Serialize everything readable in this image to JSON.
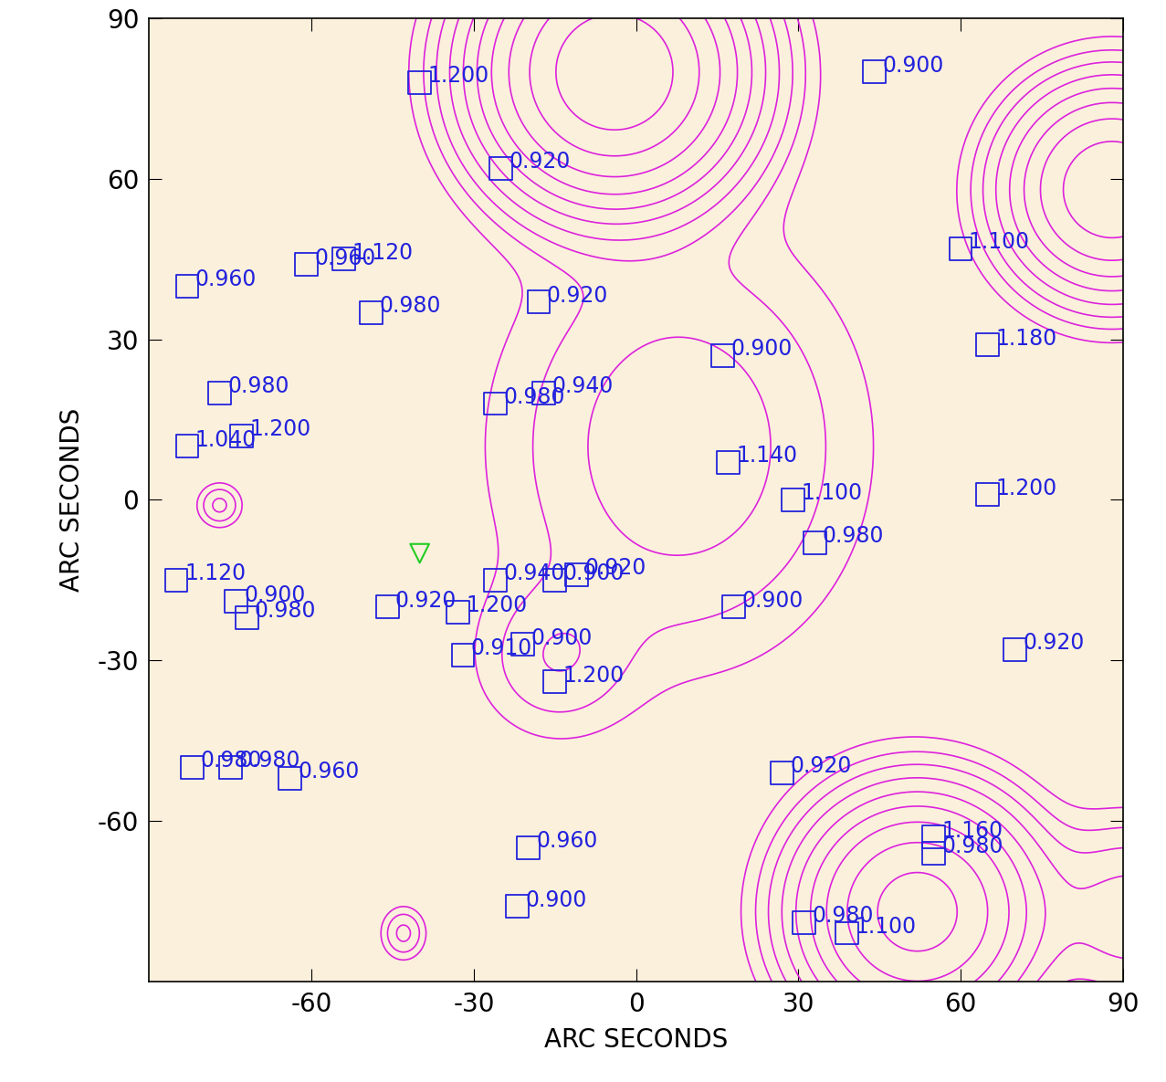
{
  "chart_data": {
    "type": "scatter",
    "xlabel": "ARC SECONDS",
    "ylabel": "ARC SECONDS",
    "xlim": [
      -90,
      90
    ],
    "ylim": [
      -90,
      90
    ],
    "xticks": [
      -60,
      -30,
      0,
      30,
      60,
      90
    ],
    "yticks": [
      -60,
      -30,
      0,
      30,
      60,
      90
    ],
    "color": "#2222dd",
    "marker": "square",
    "data_labels": true,
    "x": [
      -40,
      44,
      -25,
      60,
      -54,
      -61,
      -83,
      -49,
      -18,
      16,
      65,
      -17,
      -26,
      -77,
      -73,
      -83,
      17,
      29,
      65,
      33,
      -85,
      -26,
      -15,
      -11,
      -74,
      -72,
      -46,
      -33,
      18,
      70,
      -21,
      -32,
      -15,
      -82,
      -75,
      -64,
      27,
      -20,
      -22,
      55,
      55,
      31,
      39
    ],
    "y": [
      78,
      80,
      62,
      47,
      45,
      44,
      40,
      35,
      37,
      27,
      29,
      20,
      18,
      20,
      12,
      10,
      7,
      0,
      1,
      -8,
      -15,
      -15,
      -15,
      -14,
      -19,
      -22,
      -20,
      -21,
      -20,
      -28,
      -27,
      -29,
      -34,
      -50,
      -50,
      -52,
      -51,
      -65,
      -76,
      -63,
      -66,
      -79,
      -81
    ],
    "values": [
      1.2,
      0.9,
      0.92,
      1.1,
      1.12,
      0.96,
      0.96,
      0.98,
      0.92,
      0.9,
      1.18,
      0.94,
      0.98,
      0.98,
      1.2,
      1.04,
      1.14,
      1.1,
      1.2,
      0.98,
      1.12,
      0.94,
      0.9,
      0.92,
      0.9,
      0.98,
      0.92,
      1.2,
      0.9,
      0.92,
      0.9,
      0.91,
      1.2,
      0.98,
      0.98,
      0.96,
      0.92,
      0.96,
      0.9,
      1.16,
      0.98,
      0.98,
      1.1
    ],
    "value_labels": [
      "1.200",
      "0.900",
      "0.920",
      "1.100",
      "1.120",
      "0.960",
      "0.960",
      "0.980",
      "0.920",
      "0.900",
      "1.180",
      "0.940",
      "0.980",
      "0.980",
      "1.200",
      "1.040",
      "1.140",
      "1.100",
      "1.200",
      "0.980",
      "1.120",
      "0.940",
      "0.900",
      "0.920",
      "0.900",
      "0.980",
      "0.920",
      "1.200",
      "0.900",
      "0.920",
      "0.900",
      "0.910",
      "1.200",
      "0.980",
      "0.980",
      "0.960",
      "0.920",
      "0.960",
      "0.900",
      "1.160",
      "0.980",
      "0.980",
      "1.100"
    ],
    "target": {
      "x": -40,
      "y": -10,
      "color": "#22cc22",
      "marker": "triangle_down"
    },
    "contour": {
      "color": "#dd22dd",
      "levels": [
        1,
        2,
        3.5,
        6,
        10,
        16,
        25,
        40,
        64,
        100
      ],
      "sources": [
        {
          "x": 8,
          "y": 10,
          "peak": 5,
          "sigma_x": 20,
          "sigma_y": 24
        },
        {
          "x": -15,
          "y": -30,
          "peak": 3,
          "sigma_x": 9,
          "sigma_y": 9
        },
        {
          "x": -4,
          "y": 80,
          "peak": 150,
          "sigma_x": 12,
          "sigma_y": 12
        },
        {
          "x": 88,
          "y": 58,
          "peak": 60,
          "sigma_x": 10,
          "sigma_y": 10
        },
        {
          "x": 52,
          "y": -77,
          "peak": 80,
          "sigma_x": 11,
          "sigma_y": 11
        },
        {
          "x": -77,
          "y": -1,
          "peak": 4,
          "sigma_x": 2.5,
          "sigma_y": 2.5
        },
        {
          "x": -43,
          "y": -81,
          "peak": 4,
          "sigma_x": 2.5,
          "sigma_y": 3
        },
        {
          "x": 92,
          "y": -78,
          "peak": 8,
          "sigma_x": 10,
          "sigma_y": 10
        }
      ]
    }
  }
}
